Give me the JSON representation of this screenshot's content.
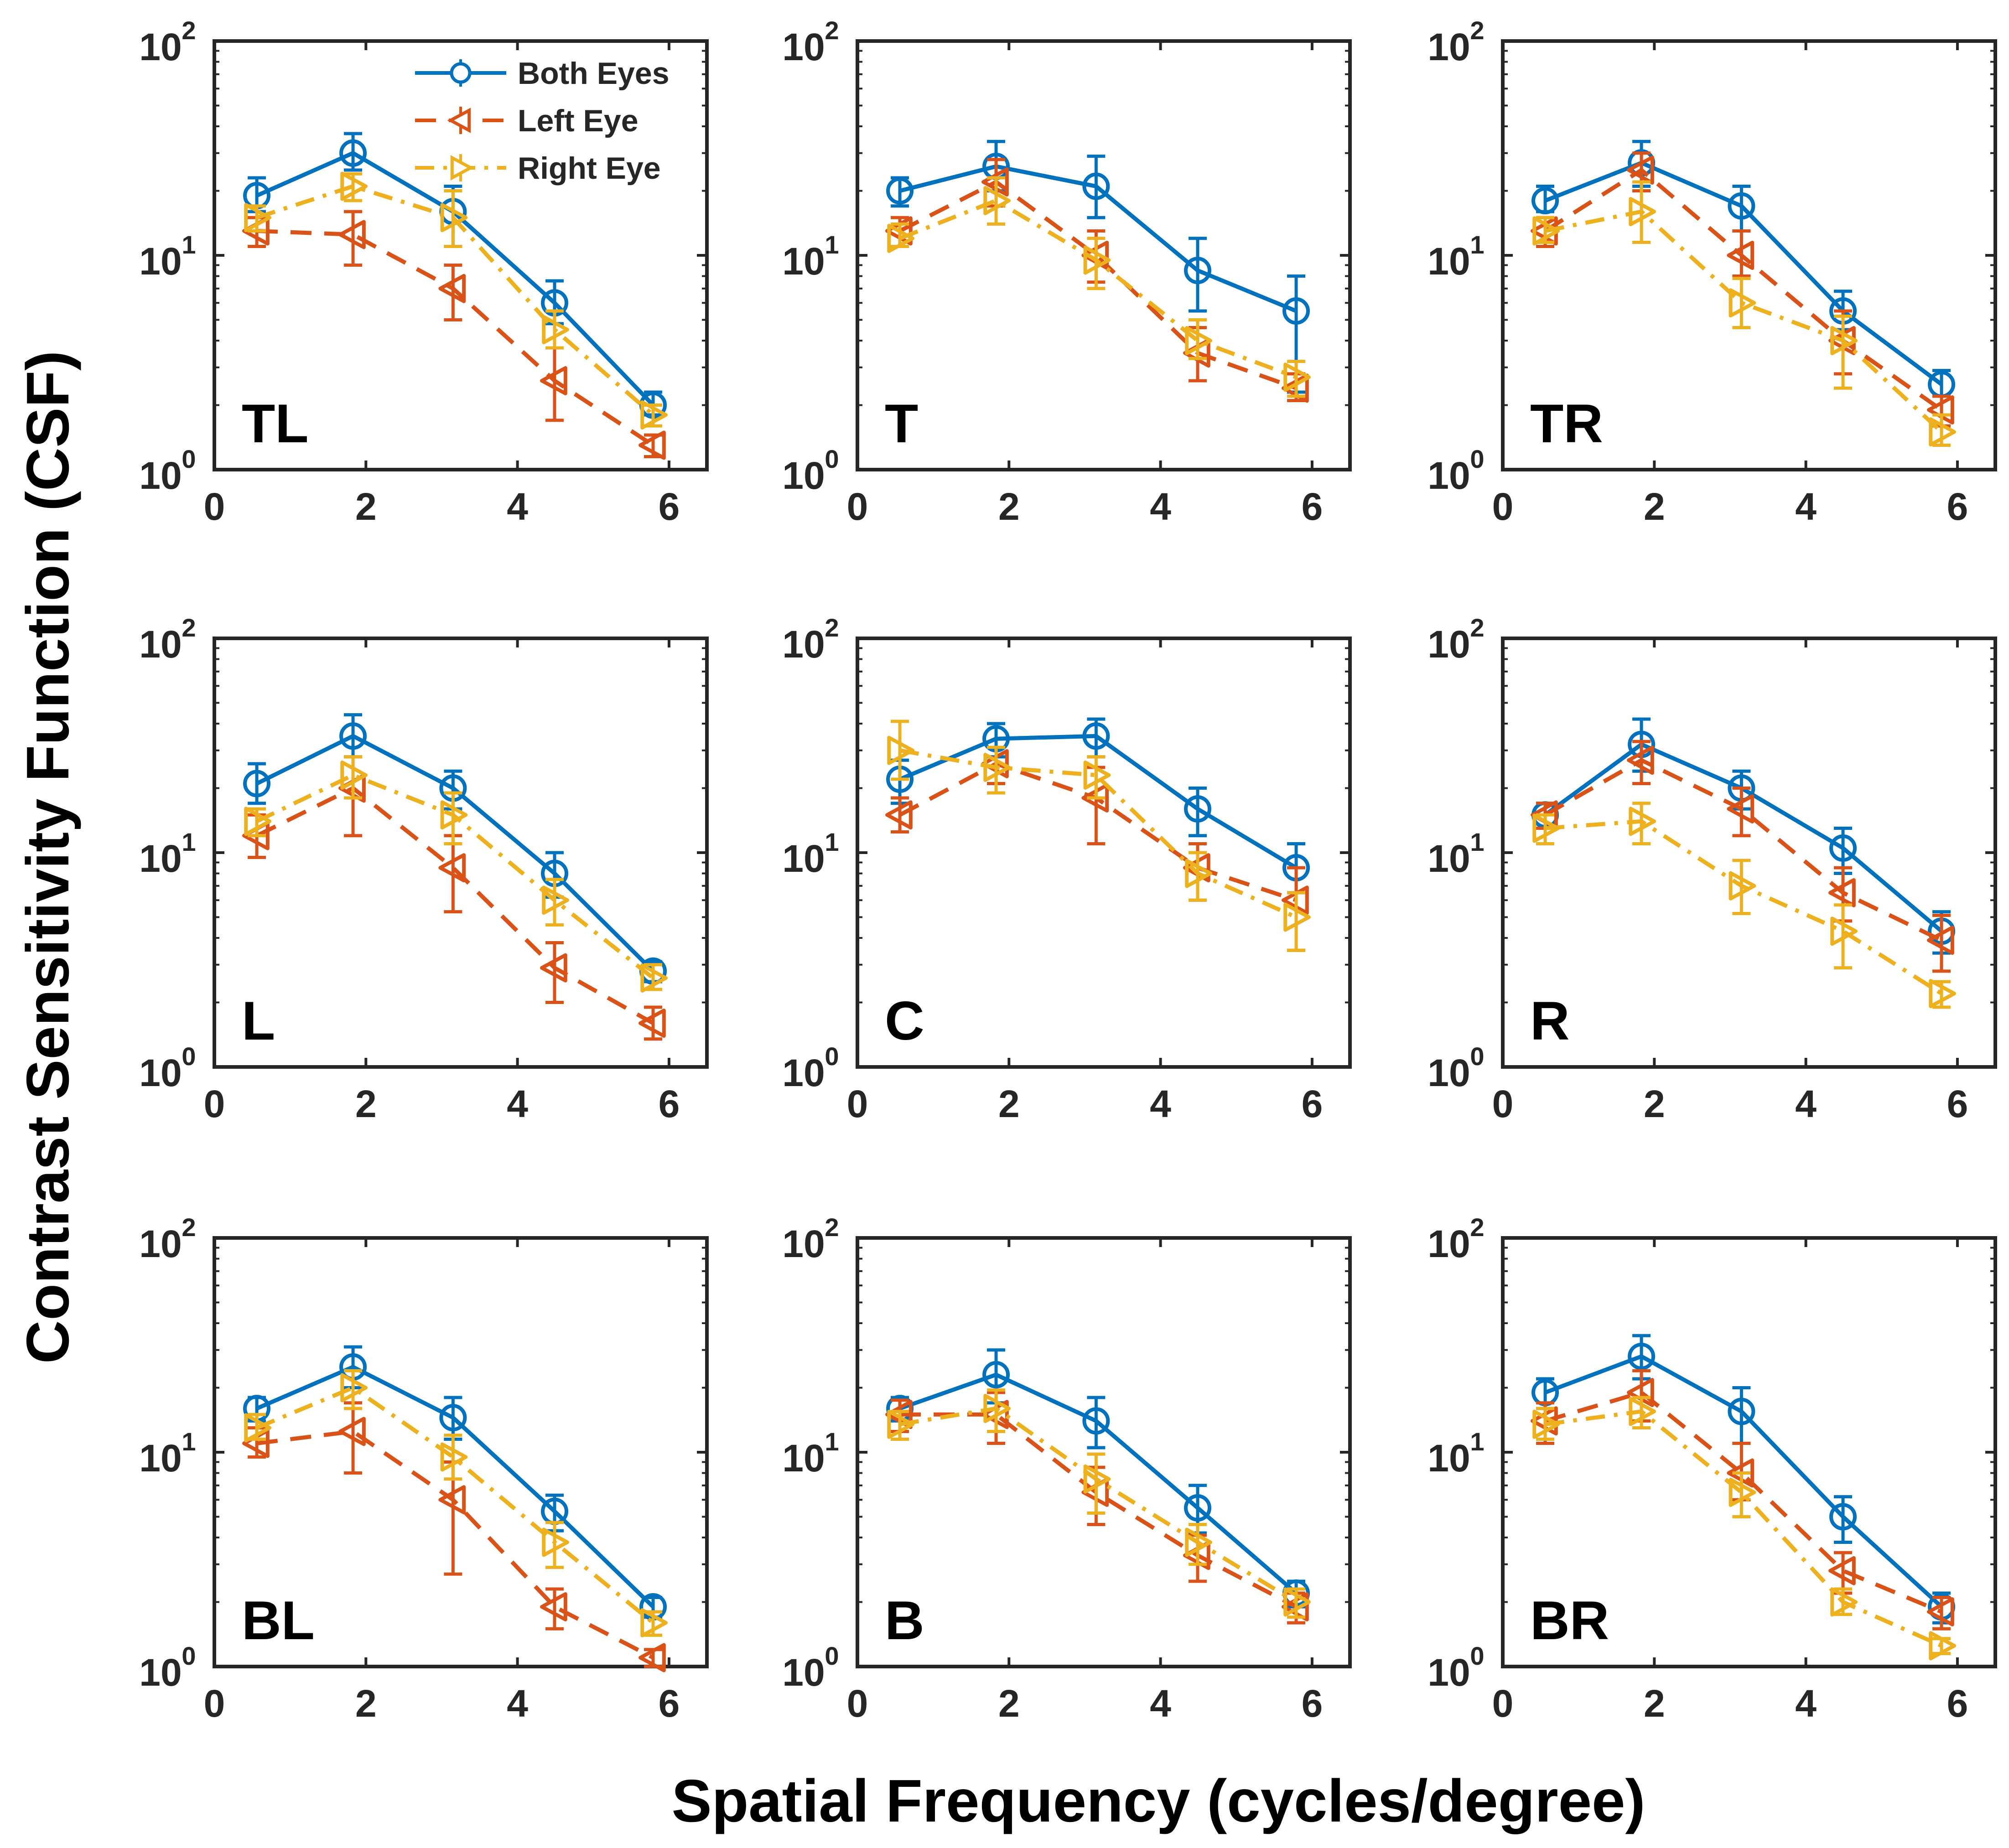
{
  "chart_data": {
    "type": "line",
    "xlabel": "Spatial Frequency (cycles/degree)",
    "ylabel": "Contrast Sensitivity Function (CSF)",
    "xlim": [
      0,
      6.5
    ],
    "ylim": [
      1,
      100
    ],
    "y_scale": "log",
    "x_ticks": [
      "0",
      "2",
      "4",
      "6"
    ],
    "y_ticks": [
      {
        "base": "10",
        "exp": "0"
      },
      {
        "base": "10",
        "exp": "1"
      },
      {
        "base": "10",
        "exp": "2"
      }
    ],
    "x": [
      0.56,
      1.83,
      3.15,
      4.49,
      5.79
    ],
    "legend": {
      "placement": "top-right of first panel",
      "entries": [
        "Both Eyes",
        "Left Eye",
        "Right Eye"
      ]
    },
    "series_styles": [
      {
        "name": "Both Eyes",
        "color": "#0072BD",
        "dash": "solid",
        "marker": "circle"
      },
      {
        "name": "Left Eye",
        "color": "#D95319",
        "dash": "dashed",
        "marker": "triangle-left"
      },
      {
        "name": "Right Eye",
        "color": "#EDB120",
        "dash": "dashdot",
        "marker": "triangle-right"
      }
    ],
    "panels": [
      {
        "label": "TL",
        "series": [
          {
            "name": "Both Eyes",
            "values": [
              19,
              30,
              16,
              6,
              2
            ],
            "err": [
              [
                16,
                23
              ],
              [
                25,
                37
              ],
              [
                11,
                21
              ],
              [
                4.8,
                7.6
              ],
              [
                1.8,
                2.3
              ]
            ]
          },
          {
            "name": "Left Eye",
            "values": [
              13,
              12.5,
              7,
              2.6,
              1.3
            ],
            "err": [
              [
                11,
                15
              ],
              [
                9,
                16
              ],
              [
                5,
                9
              ],
              [
                1.7,
                3.7
              ],
              [
                1.15,
                1.45
              ]
            ]
          },
          {
            "name": "Right Eye",
            "values": [
              15,
              21,
              15,
              4.5,
              1.8
            ],
            "err": [
              [
                13,
                17
              ],
              [
                18,
                24
              ],
              [
                11,
                20
              ],
              [
                3.7,
                5.5
              ],
              [
                1.6,
                2
              ]
            ]
          }
        ]
      },
      {
        "label": "T",
        "series": [
          {
            "name": "Both Eyes",
            "values": [
              20,
              26,
              21,
              8.5,
              5.5
            ],
            "err": [
              [
                17,
                23
              ],
              [
                20,
                34
              ],
              [
                15,
                29
              ],
              [
                5.5,
                12
              ],
              [
                2.3,
                8
              ]
            ]
          },
          {
            "name": "Left Eye",
            "values": [
              13,
              22,
              10,
              3.5,
              2.4
            ],
            "err": [
              [
                11,
                15
              ],
              [
                17,
                28
              ],
              [
                7.5,
                13
              ],
              [
                2.6,
                4.6
              ],
              [
                2.1,
                2.8
              ]
            ]
          },
          {
            "name": "Right Eye",
            "values": [
              12,
              18,
              9.5,
              4,
              2.7
            ],
            "err": [
              [
                11,
                14
              ],
              [
                14,
                23
              ],
              [
                7,
                12
              ],
              [
                3.3,
                5
              ],
              [
                2.2,
                3.2
              ]
            ]
          }
        ]
      },
      {
        "label": "TR",
        "series": [
          {
            "name": "Both Eyes",
            "values": [
              18,
              27,
              17,
              5.5,
              2.5
            ],
            "err": [
              [
                16,
                21
              ],
              [
                21,
                34
              ],
              [
                13,
                21
              ],
              [
                4.5,
                6.8
              ],
              [
                2.2,
                2.9
              ]
            ]
          },
          {
            "name": "Left Eye",
            "values": [
              13,
              25,
              10,
              4,
              1.9
            ],
            "err": [
              [
                11,
                15
              ],
              [
                20,
                30
              ],
              [
                8,
                13
              ],
              [
                2.8,
                5.5
              ],
              [
                1.6,
                2.2
              ]
            ]
          },
          {
            "name": "Right Eye",
            "values": [
              13,
              16,
              6,
              4,
              1.5
            ],
            "err": [
              [
                11.5,
                15
              ],
              [
                11.5,
                22
              ],
              [
                4.6,
                7.8
              ],
              [
                2.4,
                5.2
              ],
              [
                1.3,
                1.8
              ]
            ]
          }
        ]
      },
      {
        "label": "L",
        "series": [
          {
            "name": "Both Eyes",
            "values": [
              21,
              35,
              20,
              8,
              2.8
            ],
            "err": [
              [
                17,
                26
              ],
              [
                28,
                44
              ],
              [
                16,
                24
              ],
              [
                6.2,
                10
              ],
              [
                2.5,
                3.1
              ]
            ]
          },
          {
            "name": "Left Eye",
            "values": [
              12,
              20,
              8.5,
              2.9,
              1.6
            ],
            "err": [
              [
                9.5,
                15
              ],
              [
                12,
                28
              ],
              [
                5.3,
                12
              ],
              [
                2,
                3.8
              ],
              [
                1.35,
                1.9
              ]
            ]
          },
          {
            "name": "Right Eye",
            "values": [
              14,
              23,
              15,
              6,
              2.6
            ],
            "err": [
              [
                12,
                16
              ],
              [
                18,
                28
              ],
              [
                11,
                19
              ],
              [
                4.6,
                7.5
              ],
              [
                2.3,
                3
              ]
            ]
          }
        ]
      },
      {
        "label": "C",
        "series": [
          {
            "name": "Both Eyes",
            "values": [
              22,
              34,
              35,
              16,
              8.5
            ],
            "err": [
              [
                17,
                27
              ],
              [
                28,
                40
              ],
              [
                28,
                42
              ],
              [
                12,
                20
              ],
              [
                6.5,
                11
              ]
            ]
          },
          {
            "name": "Left Eye",
            "values": [
              15,
              26,
              18,
              8.5,
              6
            ],
            "err": [
              [
                12.5,
                18
              ],
              [
                21,
                31
              ],
              [
                11,
                25
              ],
              [
                6,
                11
              ],
              [
                3.5,
                8.5
              ]
            ]
          },
          {
            "name": "Right Eye",
            "values": [
              30,
              25,
              23,
              8,
              5
            ],
            "err": [
              [
                22,
                41
              ],
              [
                19,
                31
              ],
              [
                18,
                28
              ],
              [
                6,
                10
              ],
              [
                3.5,
                6.5
              ]
            ]
          }
        ]
      },
      {
        "label": "R",
        "series": [
          {
            "name": "Both Eyes",
            "values": [
              15,
              32,
              20,
              10.5,
              4.3
            ],
            "err": [
              [
                13,
                17
              ],
              [
                24,
                42
              ],
              [
                16,
                24
              ],
              [
                8,
                13
              ],
              [
                3.4,
                5.3
              ]
            ]
          },
          {
            "name": "Left Eye",
            "values": [
              15,
              27,
              16,
              6.5,
              3.9
            ],
            "err": [
              [
                13,
                17
              ],
              [
                21,
                33
              ],
              [
                12,
                20
              ],
              [
                4.8,
                8.5
              ],
              [
                2.8,
                5.1
              ]
            ]
          },
          {
            "name": "Right Eye",
            "values": [
              13,
              14,
              7,
              4.3,
              2.2
            ],
            "err": [
              [
                11,
                15
              ],
              [
                11,
                17
              ],
              [
                5.2,
                9.2
              ],
              [
                2.9,
                5.7
              ],
              [
                1.9,
                2.5
              ]
            ]
          }
        ]
      },
      {
        "label": "BL",
        "series": [
          {
            "name": "Both Eyes",
            "values": [
              16,
              25,
              14.5,
              5.3,
              1.9
            ],
            "err": [
              [
                14,
                18
              ],
              [
                20,
                31
              ],
              [
                11.5,
                18
              ],
              [
                4.3,
                6.3
              ],
              [
                1.7,
                2.1
              ]
            ]
          },
          {
            "name": "Left Eye",
            "values": [
              11,
              12.5,
              6,
              1.9,
              1.1
            ],
            "err": [
              [
                9.5,
                13
              ],
              [
                8,
                17
              ],
              [
                2.7,
                9
              ],
              [
                1.5,
                2.3
              ],
              [
                1,
                1.2
              ]
            ]
          },
          {
            "name": "Right Eye",
            "values": [
              13,
              20,
              9.5,
              3.8,
              1.6
            ],
            "err": [
              [
                11.5,
                15
              ],
              [
                16,
                24
              ],
              [
                7.5,
                12
              ],
              [
                2.9,
                4.7
              ],
              [
                1.4,
                1.8
              ]
            ]
          }
        ]
      },
      {
        "label": "B",
        "series": [
          {
            "name": "Both Eyes",
            "values": [
              16,
              23,
              14,
              5.5,
              2.2
            ],
            "err": [
              [
                14,
                18
              ],
              [
                17,
                30
              ],
              [
                10.5,
                18
              ],
              [
                4.2,
                7
              ],
              [
                1.9,
                2.5
              ]
            ]
          },
          {
            "name": "Left Eye",
            "values": [
              15,
              15,
              6.5,
              3.3,
              1.9
            ],
            "err": [
              [
                12.5,
                17.5
              ],
              [
                11,
                19
              ],
              [
                4.6,
                8.5
              ],
              [
                2.5,
                4.1
              ],
              [
                1.6,
                2.2
              ]
            ]
          },
          {
            "name": "Right Eye",
            "values": [
              13.5,
              16,
              7.5,
              3.8,
              2
            ],
            "err": [
              [
                11.5,
                15.5
              ],
              [
                12.5,
                19.5
              ],
              [
                5.2,
                9.8
              ],
              [
                3,
                4.6
              ],
              [
                1.7,
                2.3
              ]
            ]
          }
        ]
      },
      {
        "label": "BR",
        "series": [
          {
            "name": "Both Eyes",
            "values": [
              19,
              28,
              15.5,
              5,
              1.9
            ],
            "err": [
              [
                16,
                22
              ],
              [
                22,
                35
              ],
              [
                11,
                20
              ],
              [
                3.8,
                6.2
              ],
              [
                1.6,
                2.2
              ]
            ]
          },
          {
            "name": "Left Eye",
            "values": [
              14,
              19,
              8,
              2.8,
              1.8
            ],
            "err": [
              [
                11,
                17
              ],
              [
                14,
                24
              ],
              [
                6,
                11
              ],
              [
                2.2,
                3.4
              ],
              [
                1.5,
                2.1
              ]
            ]
          },
          {
            "name": "Right Eye",
            "values": [
              13.5,
              15.5,
              6.5,
              2,
              1.25
            ],
            "err": [
              [
                11.5,
                16
              ],
              [
                13,
                18
              ],
              [
                5,
                8
              ],
              [
                1.75,
                2.3
              ],
              [
                1.15,
                1.35
              ]
            ]
          }
        ]
      }
    ]
  }
}
